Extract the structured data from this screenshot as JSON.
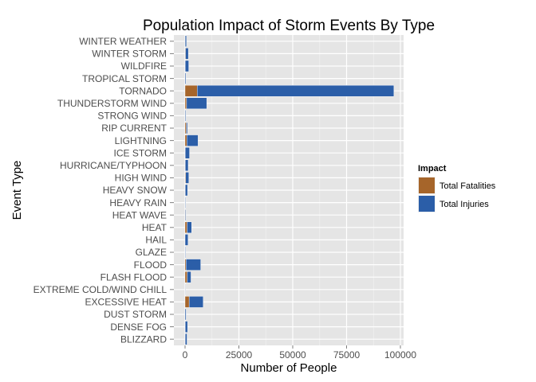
{
  "chart_data": {
    "type": "bar",
    "orientation": "horizontal",
    "stacked": true,
    "title": "Population Impact of Storm Events By Type",
    "xlabel": "Number of People",
    "ylabel": "Event Type",
    "xlim": [
      0,
      100000
    ],
    "xticks": [
      0,
      25000,
      50000,
      75000,
      100000
    ],
    "xtick_labels": [
      "0",
      "25000",
      "50000",
      "75000",
      "100000"
    ],
    "grid": true,
    "legend": {
      "title": "Impact",
      "position": "right"
    },
    "categories": [
      "WINTER WEATHER",
      "WINTER STORM",
      "WILDFIRE",
      "TROPICAL STORM",
      "TORNADO",
      "THUNDERSTORM WIND",
      "STRONG WIND",
      "RIP CURRENT",
      "LIGHTNING",
      "ICE STORM",
      "HURRICANE/TYPHOON",
      "HIGH WIND",
      "HEAVY SNOW",
      "HEAVY RAIN",
      "HEAT WAVE",
      "HEAT",
      "HAIL",
      "GLAZE",
      "FLOOD",
      "FLASH FLOOD",
      "EXTREME COLD/WIND CHILL",
      "EXCESSIVE HEAT",
      "DUST STORM",
      "DENSE FOG",
      "BLIZZARD"
    ],
    "series": [
      {
        "name": "Total Fatalities",
        "color": "#A6652A",
        "values": [
          61,
          206,
          90,
          58,
          5633,
          709,
          110,
          577,
          817,
          89,
          135,
          293,
          127,
          98,
          172,
          937,
          15,
          7,
          470,
          978,
          125,
          1903,
          24,
          81,
          101
        ]
      },
      {
        "name": "Total Injuries",
        "color": "#2B5EA8",
        "values": [
          615,
          1321,
          1606,
          383,
          91346,
          9353,
          301,
          529,
          5230,
          1975,
          1328,
          1440,
          1021,
          251,
          309,
          2100,
          1361,
          216,
          6789,
          1777,
          24,
          6525,
          483,
          1077,
          805
        ]
      }
    ]
  }
}
